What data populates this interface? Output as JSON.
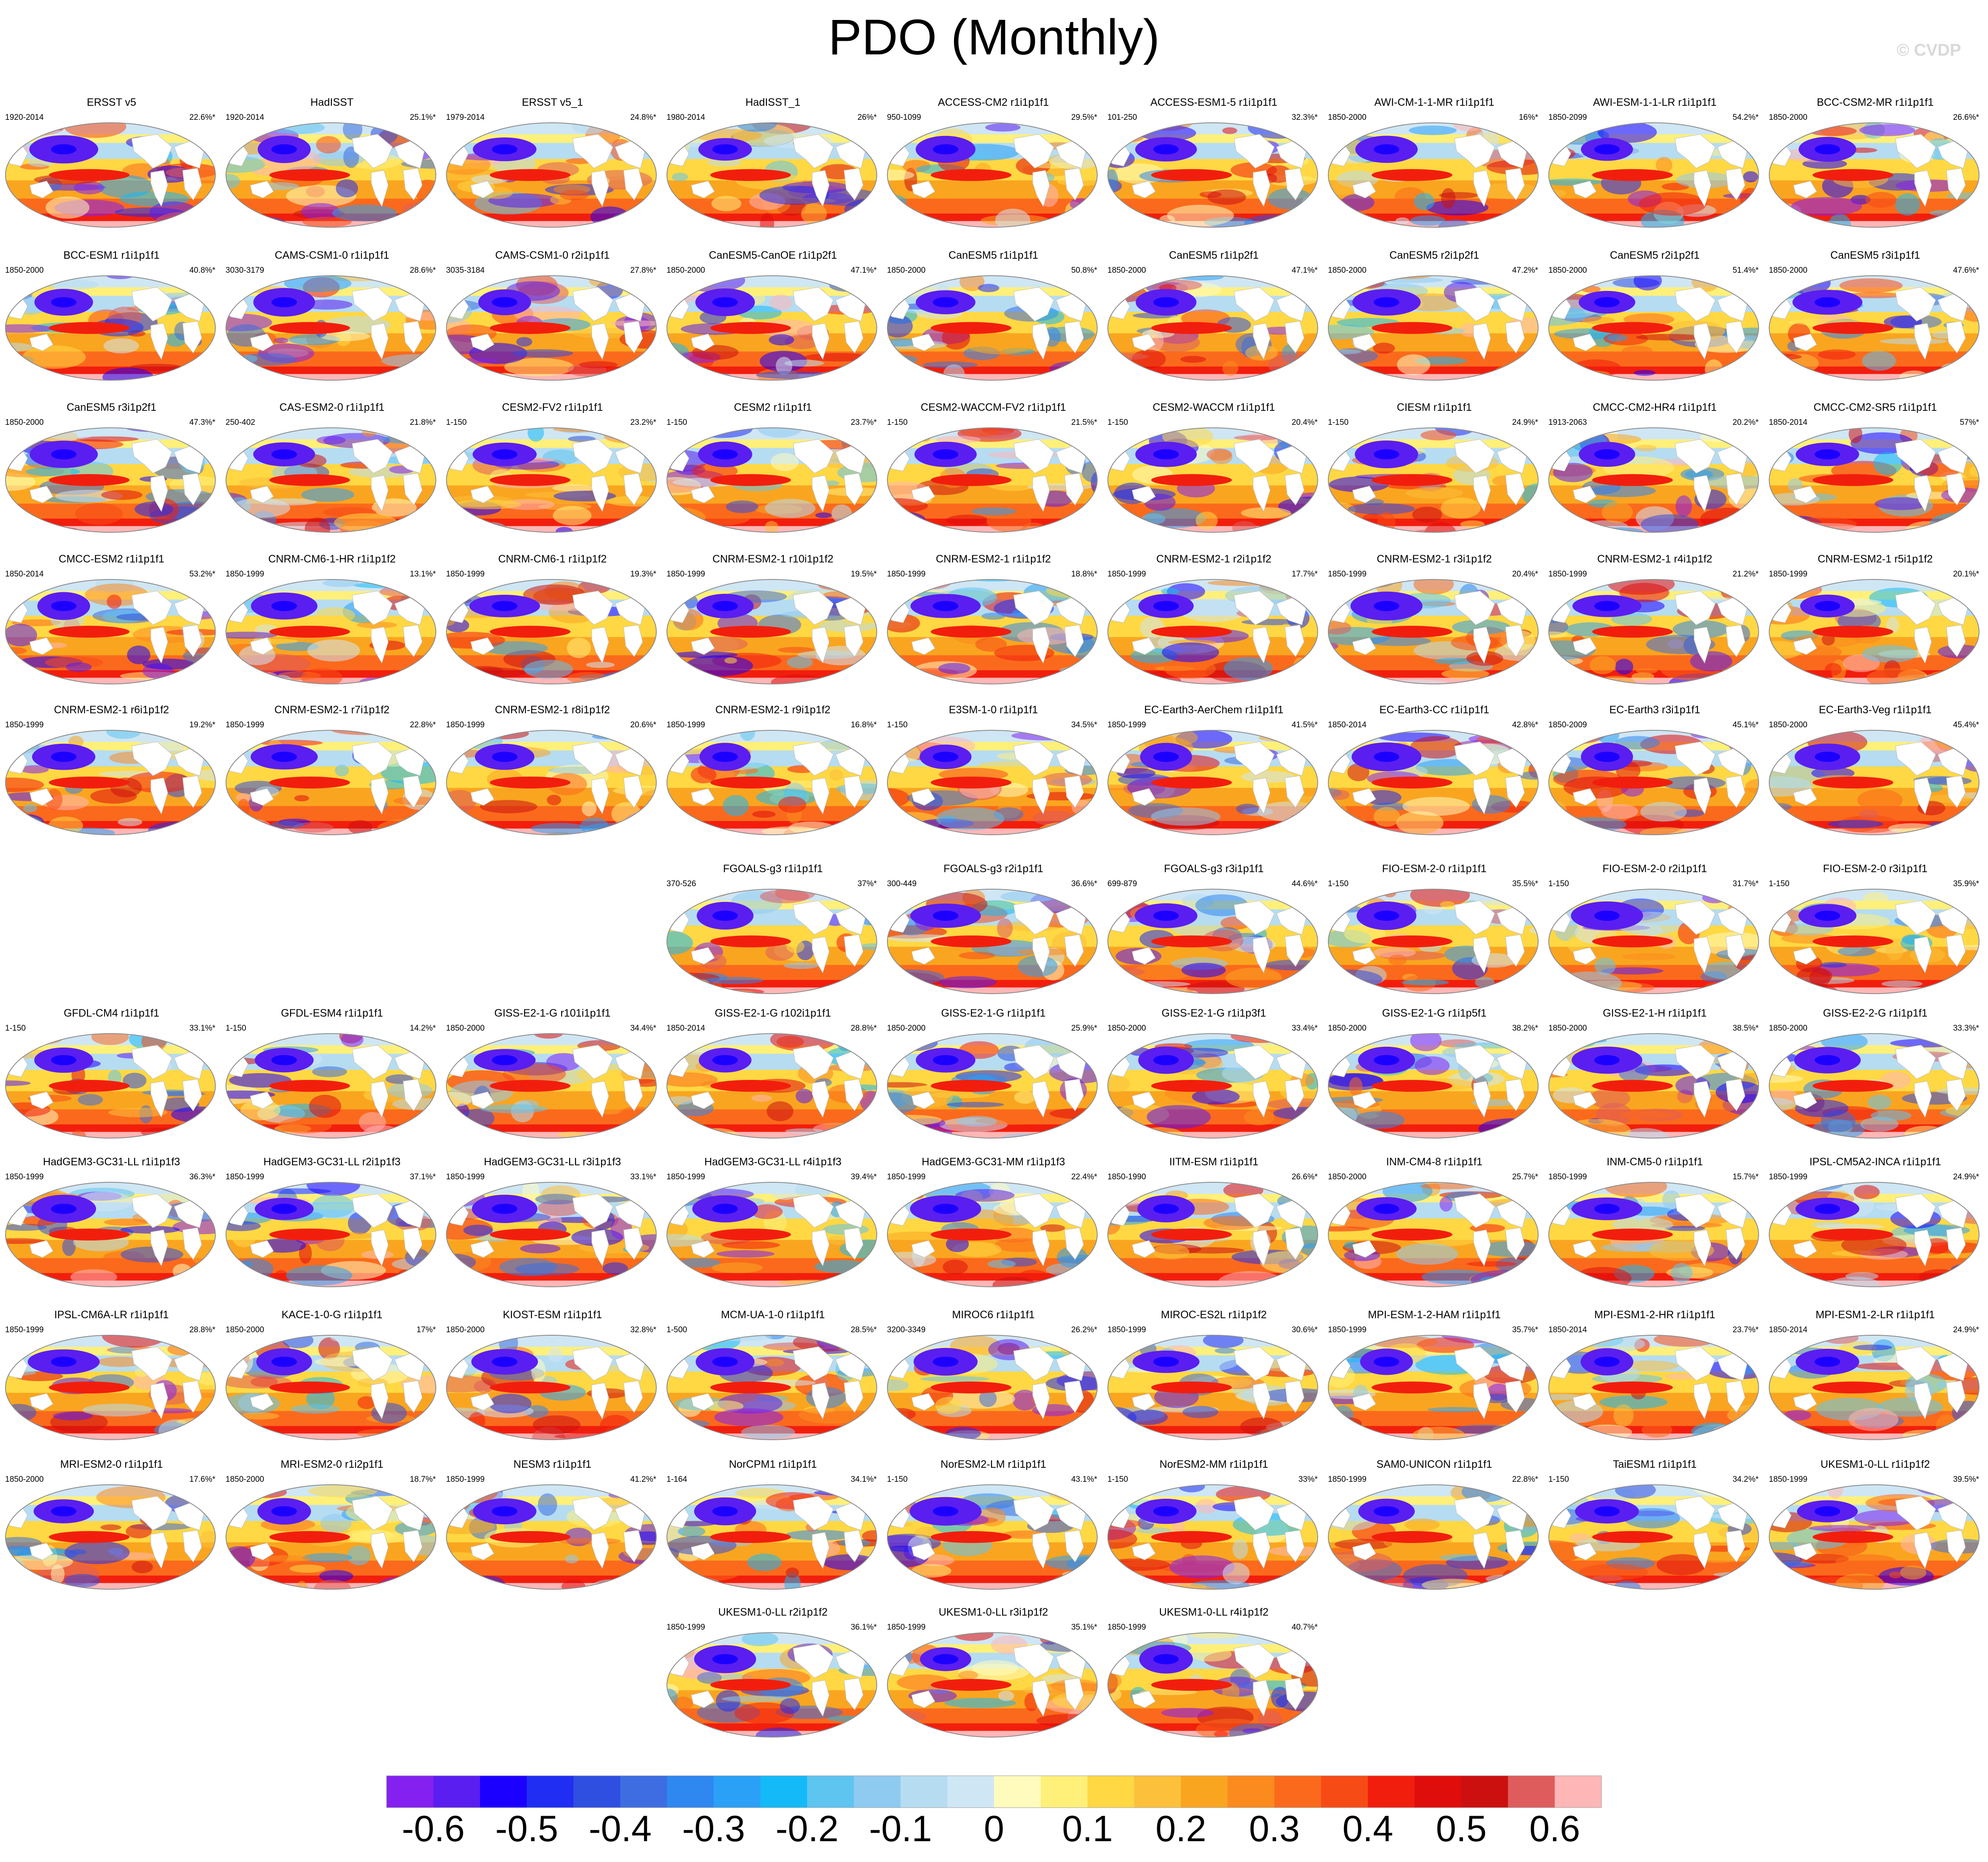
{
  "title": "PDO (Monthly)",
  "watermark": "© CVDP",
  "chart_data": {
    "type": "heatmap",
    "description_metric": "PDO regression pattern",
    "colorbar": {
      "ticks": [
        "-0.6",
        "-0.5",
        "-0.4",
        "-0.3",
        "-0.2",
        "-0.1",
        "0",
        "0.1",
        "0.2",
        "0.3",
        "0.4",
        "0.5",
        "0.6"
      ],
      "colors": [
        "#8421f0",
        "#5a1ef0",
        "#1c00ff",
        "#1f2ef2",
        "#2f4fe0",
        "#3d6de0",
        "#2f87f0",
        "#2aa0f6",
        "#14b9f7",
        "#5ec4f0",
        "#8fcaf0",
        "#b6dcf1",
        "#cfe6f4",
        "#fffbbd",
        "#fff07a",
        "#ffd843",
        "#fcc03b",
        "#faa520",
        "#fb8a1f",
        "#fb6a1c",
        "#f74b16",
        "#f21e0d",
        "#e00d0d",
        "#cc1010",
        "#df5c5c",
        "#ffb6b6"
      ]
    },
    "panels": [
      {
        "name": "ERSST v5",
        "period": "1920-2014",
        "pct": "22.6%*"
      },
      {
        "name": "HadISST",
        "period": "1920-2014",
        "pct": "25.1%*"
      },
      {
        "name": "ERSST v5_1",
        "period": "1979-2014",
        "pct": "24.8%*"
      },
      {
        "name": "HadISST_1",
        "period": "1980-2014",
        "pct": "26%*"
      },
      {
        "name": "ACCESS-CM2 r1i1p1f1",
        "period": "950-1099",
        "pct": "29.5%*"
      },
      {
        "name": "ACCESS-ESM1-5 r1i1p1f1",
        "period": "101-250",
        "pct": "32.3%*"
      },
      {
        "name": "AWI-CM-1-1-MR r1i1p1f1",
        "period": "1850-2000",
        "pct": "16%*"
      },
      {
        "name": "AWI-ESM-1-1-LR r1i1p1f1",
        "period": "1850-2099",
        "pct": "54.2%*"
      },
      {
        "name": "BCC-CSM2-MR r1i1p1f1",
        "period": "1850-2000",
        "pct": "26.6%*"
      },
      {
        "name": "BCC-ESM1 r1i1p1f1",
        "period": "1850-2000",
        "pct": "40.8%*"
      },
      {
        "name": "CAMS-CSM1-0 r1i1p1f1",
        "period": "3030-3179",
        "pct": "28.6%*"
      },
      {
        "name": "CAMS-CSM1-0 r2i1p1f1",
        "period": "3035-3184",
        "pct": "27.8%*"
      },
      {
        "name": "CanESM5-CanOE r1i1p2f1",
        "period": "1850-2000",
        "pct": "47.1%*"
      },
      {
        "name": "CanESM5 r1i1p1f1",
        "period": "1850-2000",
        "pct": "50.8%*"
      },
      {
        "name": "CanESM5 r1i1p2f1",
        "period": "1850-2000",
        "pct": "47.1%*"
      },
      {
        "name": "CanESM5 r2i1p2f1",
        "period": "1850-2000",
        "pct": "47.2%*"
      },
      {
        "name": "CanESM5 r2i1p2f1",
        "period": "1850-2000",
        "pct": "51.4%*"
      },
      {
        "name": "CanESM5 r3i1p1f1",
        "period": "1850-2000",
        "pct": "47.6%*"
      },
      {
        "name": "CanESM5 r3i1p2f1",
        "period": "1850-2000",
        "pct": "47.3%*"
      },
      {
        "name": "CAS-ESM2-0 r1i1p1f1",
        "period": "250-402",
        "pct": "21.8%*"
      },
      {
        "name": "CESM2-FV2 r1i1p1f1",
        "period": "1-150",
        "pct": "23.2%*"
      },
      {
        "name": "CESM2 r1i1p1f1",
        "period": "1-150",
        "pct": "23.7%*"
      },
      {
        "name": "CESM2-WACCM-FV2 r1i1p1f1",
        "period": "1-150",
        "pct": "21.5%*"
      },
      {
        "name": "CESM2-WACCM r1i1p1f1",
        "period": "1-150",
        "pct": "20.4%*"
      },
      {
        "name": "CIESM r1i1p1f1",
        "period": "1-150",
        "pct": "24.9%*"
      },
      {
        "name": "CMCC-CM2-HR4 r1i1p1f1",
        "period": "1913-2063",
        "pct": "20.2%*"
      },
      {
        "name": "CMCC-CM2-SR5 r1i1p1f1",
        "period": "1850-2014",
        "pct": "57%*"
      },
      {
        "name": "CMCC-ESM2 r1i1p1f1",
        "period": "1850-2014",
        "pct": "53.2%*"
      },
      {
        "name": "CNRM-CM6-1-HR r1i1p1f2",
        "period": "1850-1999",
        "pct": "13.1%*"
      },
      {
        "name": "CNRM-CM6-1 r1i1p1f2",
        "period": "1850-1999",
        "pct": "19.3%*"
      },
      {
        "name": "CNRM-ESM2-1 r10i1p1f2",
        "period": "1850-1999",
        "pct": "19.5%*"
      },
      {
        "name": "CNRM-ESM2-1 r1i1p1f2",
        "period": "1850-1999",
        "pct": "18.8%*"
      },
      {
        "name": "CNRM-ESM2-1 r2i1p1f2",
        "period": "1850-1999",
        "pct": "17.7%*"
      },
      {
        "name": "CNRM-ESM2-1 r3i1p1f2",
        "period": "1850-1999",
        "pct": "20.4%*"
      },
      {
        "name": "CNRM-ESM2-1 r4i1p1f2",
        "period": "1850-1999",
        "pct": "21.2%*"
      },
      {
        "name": "CNRM-ESM2-1 r5i1p1f2",
        "period": "1850-1999",
        "pct": "20.1%*"
      },
      {
        "name": "CNRM-ESM2-1 r6i1p1f2",
        "period": "1850-1999",
        "pct": "19.2%*"
      },
      {
        "name": "CNRM-ESM2-1 r7i1p1f2",
        "period": "1850-1999",
        "pct": "22.8%*"
      },
      {
        "name": "CNRM-ESM2-1 r8i1p1f2",
        "period": "1850-1999",
        "pct": "20.6%*"
      },
      {
        "name": "CNRM-ESM2-1 r9i1p1f2",
        "period": "1850-1999",
        "pct": "16.8%*"
      },
      {
        "name": "E3SM-1-0 r1i1p1f1",
        "period": "1-150",
        "pct": "34.5%*"
      },
      {
        "name": "EC-Earth3-AerChem r1i1p1f1",
        "period": "1850-1999",
        "pct": "41.5%*"
      },
      {
        "name": "EC-Earth3-CC r1i1p1f1",
        "period": "1850-2014",
        "pct": "42.8%*"
      },
      {
        "name": "EC-Earth3 r3i1p1f1",
        "period": "1850-2009",
        "pct": "45.1%*"
      },
      {
        "name": "EC-Earth3-Veg r1i1p1f1",
        "period": "1850-2000",
        "pct": "45.4%*"
      },
      {
        "name": "FGOALS-g3 r1i1p1f1",
        "period": "370-526",
        "pct": "37%*"
      },
      {
        "name": "FGOALS-g3 r2i1p1f1",
        "period": "300-449",
        "pct": "36.6%*"
      },
      {
        "name": "FGOALS-g3 r3i1p1f1",
        "period": "699-879",
        "pct": "44.6%*"
      },
      {
        "name": "FIO-ESM-2-0 r1i1p1f1",
        "period": "1-150",
        "pct": "35.5%*"
      },
      {
        "name": "FIO-ESM-2-0 r2i1p1f1",
        "period": "1-150",
        "pct": "31.7%*"
      },
      {
        "name": "FIO-ESM-2-0 r3i1p1f1",
        "period": "1-150",
        "pct": "35.9%*"
      },
      {
        "name": "GFDL-CM4 r1i1p1f1",
        "period": "1-150",
        "pct": "33.1%*"
      },
      {
        "name": "GFDL-ESM4 r1i1p1f1",
        "period": "1-150",
        "pct": "14.2%*"
      },
      {
        "name": "GISS-E2-1-G r101i1p1f1",
        "period": "1850-2000",
        "pct": "34.4%*"
      },
      {
        "name": "GISS-E2-1-G r102i1p1f1",
        "period": "1850-2014",
        "pct": "28.8%*"
      },
      {
        "name": "GISS-E2-1-G r1i1p1f1",
        "period": "1850-2000",
        "pct": "25.9%*"
      },
      {
        "name": "GISS-E2-1-G r1i1p3f1",
        "period": "1850-2000",
        "pct": "33.4%*"
      },
      {
        "name": "GISS-E2-1-G r1i1p5f1",
        "period": "1850-2000",
        "pct": "38.2%*"
      },
      {
        "name": "GISS-E2-1-H r1i1p1f1",
        "period": "1850-2000",
        "pct": "38.5%*"
      },
      {
        "name": "GISS-E2-2-G r1i1p1f1",
        "period": "1850-2000",
        "pct": "33.3%*"
      },
      {
        "name": "HadGEM3-GC31-LL r1i1p1f3",
        "period": "1850-1999",
        "pct": "36.3%*"
      },
      {
        "name": "HadGEM3-GC31-LL r2i1p1f3",
        "period": "1850-1999",
        "pct": "37.1%*"
      },
      {
        "name": "HadGEM3-GC31-LL r3i1p1f3",
        "period": "1850-1999",
        "pct": "33.1%*"
      },
      {
        "name": "HadGEM3-GC31-LL r4i1p1f3",
        "period": "1850-1999",
        "pct": "39.4%*"
      },
      {
        "name": "HadGEM3-GC31-MM r1i1p1f3",
        "period": "1850-1999",
        "pct": "22.4%*"
      },
      {
        "name": "IITM-ESM r1i1p1f1",
        "period": "1850-1990",
        "pct": "26.6%*"
      },
      {
        "name": "INM-CM4-8 r1i1p1f1",
        "period": "1850-2000",
        "pct": "25.7%*"
      },
      {
        "name": "INM-CM5-0 r1i1p1f1",
        "period": "1850-1999",
        "pct": "15.7%*"
      },
      {
        "name": "IPSL-CM5A2-INCA r1i1p1f1",
        "period": "1850-1999",
        "pct": "24.9%*"
      },
      {
        "name": "IPSL-CM6A-LR r1i1p1f1",
        "period": "1850-1999",
        "pct": "28.8%*"
      },
      {
        "name": "KACE-1-0-G r1i1p1f1",
        "period": "1850-2000",
        "pct": "17%*"
      },
      {
        "name": "KIOST-ESM r1i1p1f1",
        "period": "1850-2000",
        "pct": "32.8%*"
      },
      {
        "name": "MCM-UA-1-0 r1i1p1f1",
        "period": "1-500",
        "pct": "28.5%*"
      },
      {
        "name": "MIROC6 r1i1p1f1",
        "period": "3200-3349",
        "pct": "26.2%*"
      },
      {
        "name": "MIROC-ES2L r1i1p1f2",
        "period": "1850-1999",
        "pct": "30.6%*"
      },
      {
        "name": "MPI-ESM-1-2-HAM r1i1p1f1",
        "period": "1850-1999",
        "pct": "35.7%*"
      },
      {
        "name": "MPI-ESM1-2-HR r1i1p1f1",
        "period": "1850-2014",
        "pct": "23.7%*"
      },
      {
        "name": "MPI-ESM1-2-LR r1i1p1f1",
        "period": "1850-2014",
        "pct": "24.9%*"
      },
      {
        "name": "MRI-ESM2-0 r1i1p1f1",
        "period": "1850-2000",
        "pct": "17.6%*"
      },
      {
        "name": "MRI-ESM2-0 r1i2p1f1",
        "period": "1850-2000",
        "pct": "18.7%*"
      },
      {
        "name": "NESM3 r1i1p1f1",
        "period": "1850-1999",
        "pct": "41.2%*"
      },
      {
        "name": "NorCPM1 r1i1p1f1",
        "period": "1-164",
        "pct": "34.1%*"
      },
      {
        "name": "NorESM2-LM r1i1p1f1",
        "period": "1-150",
        "pct": "43.1%*"
      },
      {
        "name": "NorESM2-MM r1i1p1f1",
        "period": "1-150",
        "pct": "33%*"
      },
      {
        "name": "SAM0-UNICON r1i1p1f1",
        "period": "1850-1999",
        "pct": "22.8%*"
      },
      {
        "name": "TaiESM1 r1i1p1f1",
        "period": "1-150",
        "pct": "34.2%*"
      },
      {
        "name": "UKESM1-0-LL r1i1p1f2",
        "period": "1850-1999",
        "pct": "39.5%*"
      },
      {
        "name": "UKESM1-0-LL r2i1p1f2",
        "period": "1850-1999",
        "pct": "36.1%*"
      },
      {
        "name": "UKESM1-0-LL r3i1p1f2",
        "period": "1850-1999",
        "pct": "35.1%*"
      },
      {
        "name": "UKESM1-0-LL r4i1p1f2",
        "period": "1850-1999",
        "pct": "40.7%*"
      }
    ]
  }
}
